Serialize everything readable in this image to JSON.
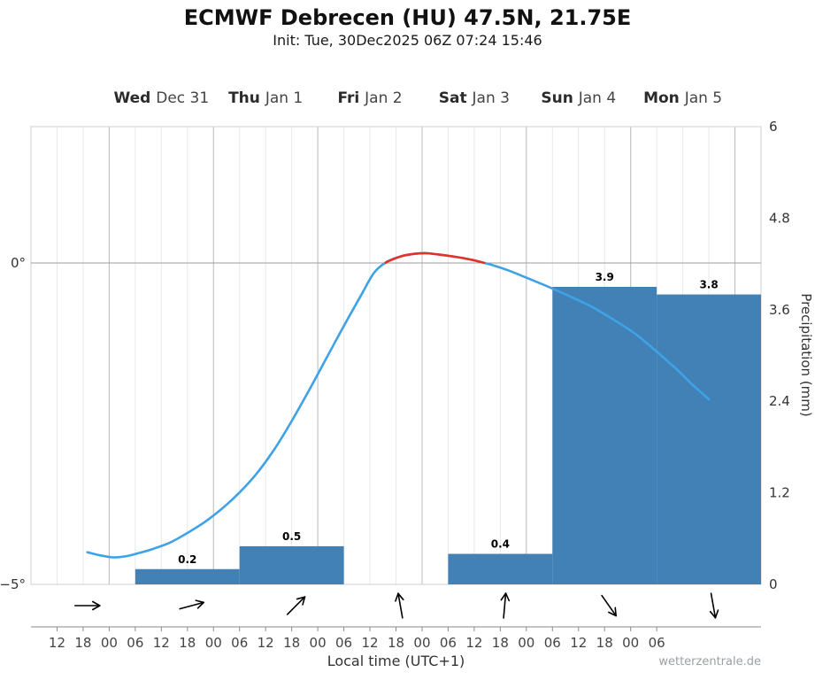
{
  "watermark": "wetterzentrale.de",
  "chart_data": {
    "type": "line+bar",
    "title": "ECMWF Debrecen (HU) 47.5N, 21.75E",
    "subtitle": "Init: Tue, 30Dec2025 06Z 07:24 15:46",
    "xlabel": "Local time (UTC+1)",
    "ylabel_right": "Precipitation (mm)",
    "x_domain_hours": [
      6,
      174
    ],
    "day_boundaries_hours": [
      24,
      48,
      72,
      96,
      120,
      144,
      168
    ],
    "day_labels": [
      {
        "day": "Wed",
        "date": "Dec 31",
        "center_hour": 36
      },
      {
        "day": "Thu",
        "date": "Jan 1",
        "center_hour": 60
      },
      {
        "day": "Fri",
        "date": "Jan 2",
        "center_hour": 84
      },
      {
        "day": "Sat",
        "date": "Jan 3",
        "center_hour": 108
      },
      {
        "day": "Sun",
        "date": "Jan 4",
        "center_hour": 132
      },
      {
        "day": "Mon",
        "date": "Jan 5",
        "center_hour": 156
      }
    ],
    "temp_axis": {
      "min": -5,
      "max": 2.12,
      "ticks": [
        {
          "value": 0,
          "label": "0°"
        },
        {
          "value": -5,
          "label": "−5°"
        }
      ]
    },
    "precip_axis": {
      "min": 0,
      "max": 6,
      "ticks": [
        0,
        1.2,
        2.4,
        3.6,
        4.8,
        6
      ],
      "tick_labels": [
        "0",
        "1.2",
        "2.4",
        "3.6",
        "4.8",
        "6"
      ]
    },
    "x_ticks": [
      {
        "hour": 12,
        "label": "12"
      },
      {
        "hour": 18,
        "label": "18"
      },
      {
        "hour": 24,
        "label": "00"
      },
      {
        "hour": 30,
        "label": "06"
      },
      {
        "hour": 36,
        "label": "12"
      },
      {
        "hour": 42,
        "label": "18"
      },
      {
        "hour": 48,
        "label": "00"
      },
      {
        "hour": 54,
        "label": "06"
      },
      {
        "hour": 60,
        "label": "12"
      },
      {
        "hour": 66,
        "label": "18"
      },
      {
        "hour": 72,
        "label": "00"
      },
      {
        "hour": 78,
        "label": "06"
      },
      {
        "hour": 84,
        "label": "12"
      },
      {
        "hour": 90,
        "label": "18"
      },
      {
        "hour": 96,
        "label": "00"
      },
      {
        "hour": 102,
        "label": "06"
      },
      {
        "hour": 108,
        "label": "12"
      },
      {
        "hour": 114,
        "label": "18"
      },
      {
        "hour": 120,
        "label": "00"
      },
      {
        "hour": 126,
        "label": "06"
      },
      {
        "hour": 132,
        "label": "12"
      },
      {
        "hour": 138,
        "label": "18"
      },
      {
        "hour": 144,
        "label": "00"
      },
      {
        "hour": 150,
        "label": "06"
      }
    ],
    "temperature_c": [
      [
        19,
        -4.5
      ],
      [
        22,
        -4.55
      ],
      [
        25,
        -4.58
      ],
      [
        28,
        -4.56
      ],
      [
        31,
        -4.51
      ],
      [
        34,
        -4.45
      ],
      [
        38,
        -4.35
      ],
      [
        42,
        -4.2
      ],
      [
        46,
        -4.03
      ],
      [
        50,
        -3.82
      ],
      [
        54,
        -3.57
      ],
      [
        58,
        -3.27
      ],
      [
        62,
        -2.9
      ],
      [
        66,
        -2.46
      ],
      [
        70,
        -1.98
      ],
      [
        74,
        -1.48
      ],
      [
        78,
        -0.98
      ],
      [
        82,
        -0.5
      ],
      [
        85,
        -0.15
      ],
      [
        88,
        0.02
      ],
      [
        91,
        0.1
      ],
      [
        94,
        0.14
      ],
      [
        97,
        0.15
      ],
      [
        101,
        0.12
      ],
      [
        105,
        0.08
      ],
      [
        108,
        0.04
      ],
      [
        112,
        -0.03
      ],
      [
        116,
        -0.12
      ],
      [
        120,
        -0.23
      ],
      [
        125,
        -0.37
      ],
      [
        130,
        -0.52
      ],
      [
        135,
        -0.68
      ],
      [
        140,
        -0.88
      ],
      [
        145,
        -1.1
      ],
      [
        150,
        -1.38
      ],
      [
        155,
        -1.68
      ],
      [
        158,
        -1.88
      ],
      [
        162,
        -2.12
      ]
    ],
    "temp_color_below_zero": "#3fa2e6",
    "temp_color_above_zero": "#e63128",
    "precip_bars": [
      {
        "start_hour": 30,
        "end_hour": 54,
        "value": 0.2,
        "label": "0.2"
      },
      {
        "start_hour": 54,
        "end_hour": 78,
        "value": 0.5,
        "label": "0.5"
      },
      {
        "start_hour": 102,
        "end_hour": 126,
        "value": 0.4,
        "label": "0.4"
      },
      {
        "start_hour": 126,
        "end_hour": 150,
        "value": 3.9,
        "label": "3.9"
      },
      {
        "start_hour": 150,
        "end_hour": 174,
        "value": 3.8,
        "label": "3.8"
      }
    ],
    "bar_color": "#4181b6",
    "wind_arrows": [
      {
        "hour": 19,
        "rotation_deg": 0
      },
      {
        "hour": 43,
        "rotation_deg": -15
      },
      {
        "hour": 67,
        "rotation_deg": -45
      },
      {
        "hour": 91,
        "rotation_deg": -100
      },
      {
        "hour": 115,
        "rotation_deg": -85
      },
      {
        "hour": 139,
        "rotation_deg": 55
      },
      {
        "hour": 163,
        "rotation_deg": 80
      }
    ]
  }
}
